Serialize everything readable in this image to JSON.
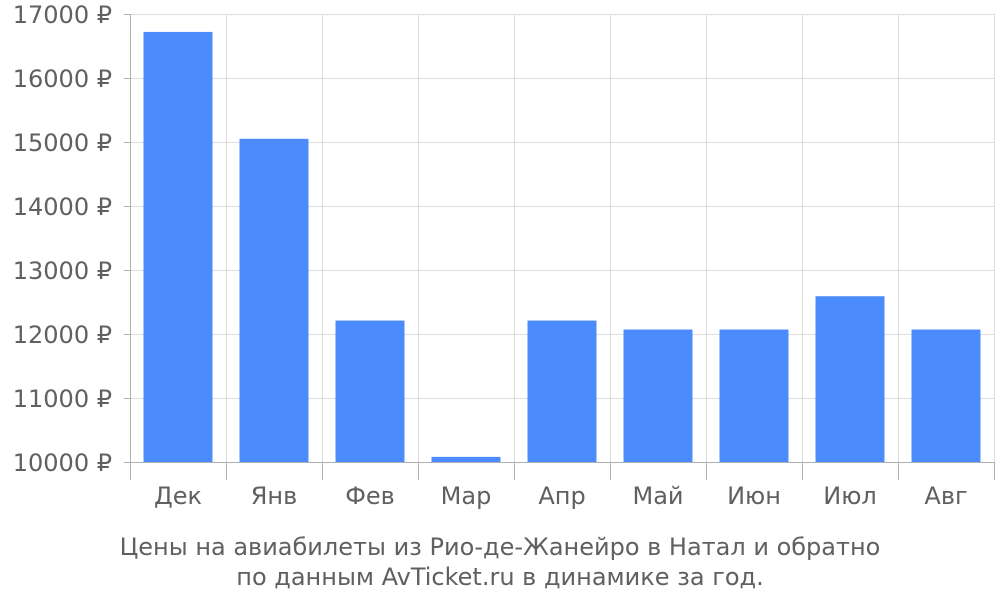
{
  "chart_data": {
    "type": "bar",
    "categories": [
      "Дек",
      "Янв",
      "Фев",
      "Мар",
      "Апр",
      "Май",
      "Июн",
      "Июл",
      "Авг"
    ],
    "values": [
      16720,
      15050,
      12210,
      10080,
      12210,
      12070,
      12070,
      12590,
      12070
    ],
    "ylim": [
      10000,
      17000
    ],
    "yticks": [
      10000,
      11000,
      12000,
      13000,
      14000,
      15000,
      16000,
      17000
    ],
    "ytick_labels": [
      "10000 ₽",
      "11000 ₽",
      "12000 ₽",
      "13000 ₽",
      "14000 ₽",
      "15000 ₽",
      "16000 ₽",
      "17000 ₽"
    ],
    "bar_color": "#4b8bfb",
    "grid": true,
    "caption": {
      "line1": "Цены на авиабилеты из Рио-де-Жанейро в Натал и обратно",
      "line2": "по данным AvTicket.ru в динамике за год."
    }
  }
}
